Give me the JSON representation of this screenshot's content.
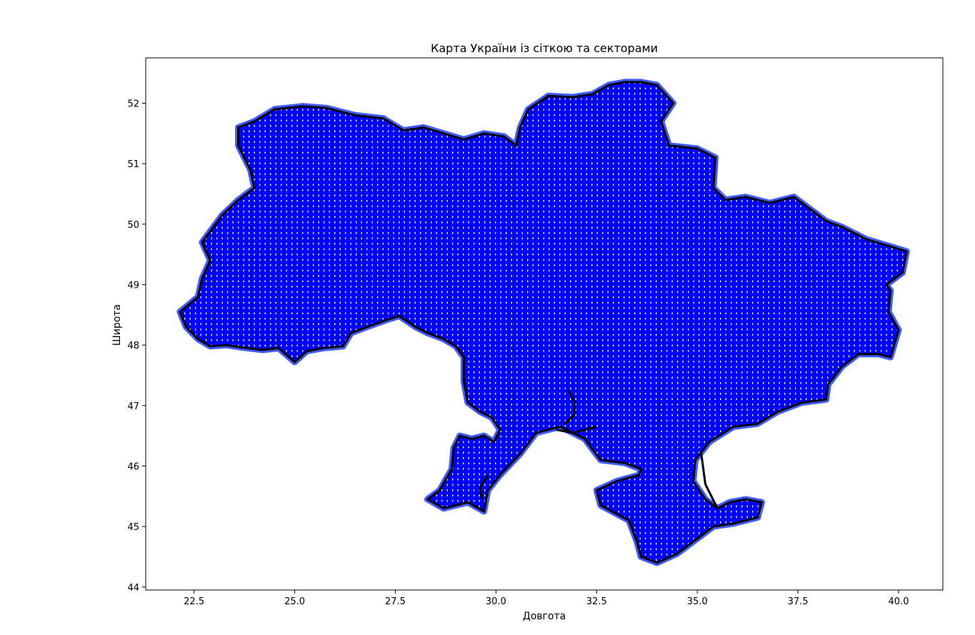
{
  "chart_data": {
    "type": "scatter",
    "title": "Карта України із сіткою та секторами",
    "xlabel": "Довгота",
    "ylabel": "Широта",
    "xlim": [
      21.3,
      41.1
    ],
    "ylim": [
      43.95,
      52.75
    ],
    "xticks": [
      22.5,
      25.0,
      27.5,
      30.0,
      32.5,
      35.0,
      37.5,
      40.0
    ],
    "xtick_labels": [
      "22.5",
      "25.0",
      "27.5",
      "30.0",
      "32.5",
      "35.0",
      "37.5",
      "40.0"
    ],
    "yticks": [
      44,
      45,
      46,
      47,
      48,
      49,
      50,
      51,
      52
    ],
    "ytick_labels": [
      "44",
      "45",
      "46",
      "47",
      "48",
      "49",
      "50",
      "51",
      "52"
    ],
    "grid": false,
    "legend": "none",
    "colors": {
      "fill": "#0000ff",
      "grid_points": "#ffffff",
      "border": "#000000",
      "border_halo": "#1f3fff"
    },
    "series": [
      {
        "type": "polygon",
        "values": [
          [
            22.15,
            48.55
          ],
          [
            22.3,
            48.3
          ],
          [
            22.6,
            48.1
          ],
          [
            22.9,
            47.98
          ],
          [
            23.3,
            48.0
          ],
          [
            23.7,
            47.96
          ],
          [
            24.2,
            47.92
          ],
          [
            24.6,
            47.95
          ],
          [
            25.0,
            47.72
          ],
          [
            25.3,
            47.9
          ],
          [
            25.7,
            47.95
          ],
          [
            26.2,
            47.98
          ],
          [
            26.4,
            48.2
          ],
          [
            26.8,
            48.3
          ],
          [
            27.3,
            48.42
          ],
          [
            27.6,
            48.48
          ],
          [
            28.0,
            48.3
          ],
          [
            28.3,
            48.2
          ],
          [
            28.7,
            48.1
          ],
          [
            29.0,
            47.98
          ],
          [
            29.2,
            47.8
          ],
          [
            29.2,
            47.4
          ],
          [
            29.3,
            47.05
          ],
          [
            29.6,
            46.9
          ],
          [
            29.9,
            46.8
          ],
          [
            30.1,
            46.6
          ],
          [
            29.95,
            46.4
          ],
          [
            29.7,
            46.5
          ],
          [
            29.4,
            46.45
          ],
          [
            29.1,
            46.5
          ],
          [
            28.95,
            46.3
          ],
          [
            28.9,
            45.95
          ],
          [
            28.6,
            45.6
          ],
          [
            28.3,
            45.45
          ],
          [
            28.7,
            45.3
          ],
          [
            29.3,
            45.4
          ],
          [
            29.7,
            45.25
          ],
          [
            29.8,
            45.6
          ],
          [
            30.1,
            45.85
          ],
          [
            30.6,
            46.2
          ],
          [
            31.0,
            46.55
          ],
          [
            31.6,
            46.65
          ],
          [
            32.2,
            46.45
          ],
          [
            32.6,
            46.1
          ],
          [
            33.2,
            46.05
          ],
          [
            33.6,
            45.95
          ],
          [
            33.55,
            45.85
          ],
          [
            33.0,
            45.75
          ],
          [
            32.5,
            45.6
          ],
          [
            32.6,
            45.35
          ],
          [
            33.3,
            45.1
          ],
          [
            33.5,
            44.75
          ],
          [
            33.6,
            44.5
          ],
          [
            34.0,
            44.4
          ],
          [
            34.5,
            44.55
          ],
          [
            35.0,
            44.8
          ],
          [
            35.4,
            45.0
          ],
          [
            35.9,
            45.05
          ],
          [
            36.5,
            45.15
          ],
          [
            36.6,
            45.4
          ],
          [
            36.2,
            45.45
          ],
          [
            35.8,
            45.4
          ],
          [
            35.5,
            45.3
          ],
          [
            35.2,
            45.45
          ],
          [
            34.9,
            45.75
          ],
          [
            34.95,
            46.1
          ],
          [
            35.3,
            46.4
          ],
          [
            35.9,
            46.65
          ],
          [
            36.5,
            46.7
          ],
          [
            37.0,
            46.9
          ],
          [
            37.6,
            47.05
          ],
          [
            38.2,
            47.1
          ],
          [
            38.25,
            47.35
          ],
          [
            38.6,
            47.65
          ],
          [
            39.0,
            47.85
          ],
          [
            39.5,
            47.85
          ],
          [
            39.8,
            47.8
          ],
          [
            40.0,
            48.25
          ],
          [
            39.75,
            48.55
          ],
          [
            39.8,
            48.9
          ],
          [
            39.7,
            49.0
          ],
          [
            40.1,
            49.2
          ],
          [
            40.2,
            49.55
          ],
          [
            39.7,
            49.65
          ],
          [
            39.2,
            49.75
          ],
          [
            38.6,
            49.95
          ],
          [
            38.2,
            50.05
          ],
          [
            37.8,
            50.25
          ],
          [
            37.4,
            50.45
          ],
          [
            36.8,
            50.35
          ],
          [
            36.2,
            50.45
          ],
          [
            35.7,
            50.4
          ],
          [
            35.4,
            50.6
          ],
          [
            35.45,
            51.1
          ],
          [
            35.0,
            51.25
          ],
          [
            34.3,
            51.3
          ],
          [
            34.1,
            51.7
          ],
          [
            34.4,
            52.0
          ],
          [
            34.0,
            52.3
          ],
          [
            33.6,
            52.35
          ],
          [
            33.2,
            52.35
          ],
          [
            32.8,
            52.3
          ],
          [
            32.4,
            52.15
          ],
          [
            31.9,
            52.1
          ],
          [
            31.3,
            52.12
          ],
          [
            30.8,
            51.9
          ],
          [
            30.6,
            51.6
          ],
          [
            30.5,
            51.3
          ],
          [
            30.2,
            51.45
          ],
          [
            29.7,
            51.5
          ],
          [
            29.2,
            51.4
          ],
          [
            28.7,
            51.5
          ],
          [
            28.2,
            51.6
          ],
          [
            27.7,
            51.55
          ],
          [
            27.2,
            51.75
          ],
          [
            26.5,
            51.8
          ],
          [
            25.8,
            51.92
          ],
          [
            25.2,
            51.95
          ],
          [
            24.5,
            51.9
          ],
          [
            24.0,
            51.7
          ],
          [
            23.6,
            51.6
          ],
          [
            23.6,
            51.3
          ],
          [
            23.9,
            50.9
          ],
          [
            24.0,
            50.6
          ],
          [
            23.6,
            50.4
          ],
          [
            23.2,
            50.15
          ],
          [
            22.7,
            49.7
          ],
          [
            22.9,
            49.4
          ],
          [
            22.7,
            49.1
          ],
          [
            22.6,
            48.8
          ],
          [
            22.15,
            48.55
          ]
        ]
      }
    ],
    "river_lines": [
      [
        [
          31.8,
          47.25
        ],
        [
          31.95,
          47.05
        ],
        [
          31.95,
          46.85
        ],
        [
          31.7,
          46.7
        ]
      ],
      [
        [
          31.5,
          46.6
        ],
        [
          31.9,
          46.55
        ],
        [
          32.5,
          46.65
        ]
      ],
      [
        [
          29.8,
          45.85
        ],
        [
          29.6,
          45.65
        ],
        [
          29.65,
          45.45
        ]
      ],
      [
        [
          35.1,
          46.2
        ],
        [
          35.2,
          45.7
        ],
        [
          35.5,
          45.3
        ]
      ]
    ]
  }
}
